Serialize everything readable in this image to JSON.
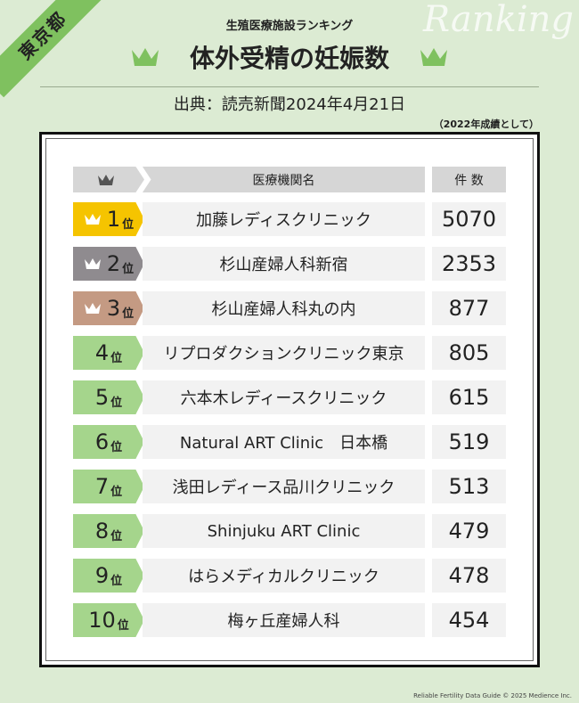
{
  "region_label": "東京都",
  "watermark": "Ranking",
  "subtitle": "生殖医療施設ランキング",
  "title": "体外受精の妊娠数",
  "source": "出典：読売新聞2024年4月21日",
  "note": "（2022年成績として）",
  "table": {
    "headers": {
      "name": "医療機関名",
      "count": "件 数"
    },
    "rank_suffix": "位",
    "rows": [
      {
        "rank": "1",
        "name": "加藤レディスクリニック",
        "count": "5070",
        "color": "#f5c400",
        "crown": true
      },
      {
        "rank": "2",
        "name": "杉山産婦人科新宿",
        "count": "2353",
        "color": "#8f8b8f",
        "crown": true
      },
      {
        "rank": "3",
        "name": "杉山産婦人科丸の内",
        "count": "877",
        "color": "#c49a83",
        "crown": true
      },
      {
        "rank": "4",
        "name": "リプロダクションクリニック東京",
        "count": "805",
        "color": "#a5d58c",
        "crown": false
      },
      {
        "rank": "5",
        "name": "六本木レディースクリニック",
        "count": "615",
        "color": "#a5d58c",
        "crown": false
      },
      {
        "rank": "6",
        "name": "Natural ART Clinic　日本橋",
        "count": "519",
        "color": "#a5d58c",
        "crown": false
      },
      {
        "rank": "7",
        "name": "浅田レディース品川クリニック",
        "count": "513",
        "color": "#a5d58c",
        "crown": false
      },
      {
        "rank": "8",
        "name": "Shinjuku ART Clinic",
        "count": "479",
        "color": "#a5d58c",
        "crown": false
      },
      {
        "rank": "9",
        "name": "はらメディカルクリニック",
        "count": "478",
        "color": "#a5d58c",
        "crown": false
      },
      {
        "rank": "10",
        "name": "梅ヶ丘産婦人科",
        "count": "454",
        "color": "#a5d58c",
        "crown": false
      }
    ]
  },
  "footer": "Reliable Fertility Data Guide © 2025 Medience Inc."
}
